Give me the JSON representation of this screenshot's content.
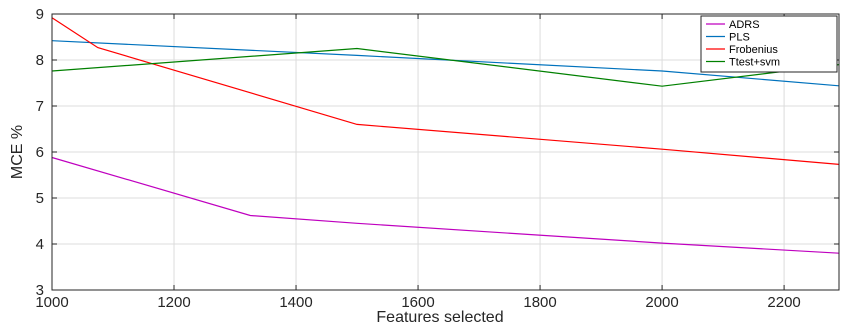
{
  "chart_data": {
    "type": "line",
    "xlabel": "Features selected",
    "ylabel": "MCE %",
    "xlim": [
      1000,
      2290
    ],
    "ylim": [
      3,
      9
    ],
    "xticks": [
      "1000",
      "1200",
      "1400",
      "1600",
      "1800",
      "2000",
      "2200"
    ],
    "yticks": [
      "3",
      "4",
      "5",
      "6",
      "7",
      "8",
      "9"
    ],
    "grid": true,
    "legend_position": "top-right",
    "series": [
      {
        "name": "ADRS",
        "color": "#bf00bf",
        "x": [
          1000,
          1325,
          1500,
          2000,
          2290
        ],
        "y": [
          5.88,
          4.62,
          4.45,
          4.02,
          3.8
        ]
      },
      {
        "name": "PLS",
        "color": "#0072bd",
        "x": [
          1000,
          1500,
          2000,
          2290
        ],
        "y": [
          8.42,
          8.1,
          7.76,
          7.44
        ]
      },
      {
        "name": "Frobenius",
        "color": "#ff0000",
        "x": [
          1000,
          1075,
          1500,
          2000,
          2290
        ],
        "y": [
          8.92,
          8.27,
          6.6,
          6.06,
          5.73
        ]
      },
      {
        "name": "Ttest+svm",
        "color": "#008000",
        "x": [
          1000,
          1500,
          2000,
          2290
        ],
        "y": [
          7.76,
          8.25,
          7.43,
          7.9
        ]
      }
    ]
  }
}
